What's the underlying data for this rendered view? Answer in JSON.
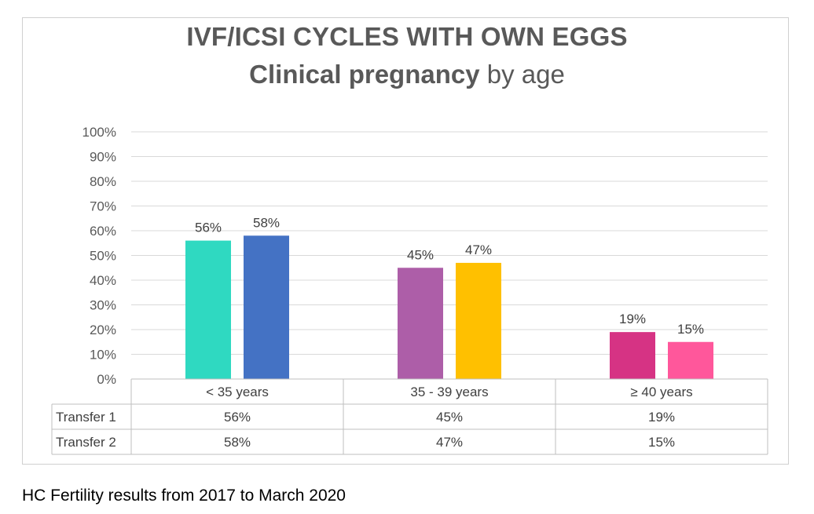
{
  "chart_data": {
    "type": "bar",
    "title": "IVF/ICSI CYCLES WITH OWN EGGS",
    "subtitle_bold": "Clinical pregnancy",
    "subtitle_rest": " by age",
    "categories": [
      "< 35 years",
      "35 - 39 years",
      "≥ 40 years"
    ],
    "series": [
      {
        "name": "Transfer 1",
        "values": [
          56,
          45,
          19
        ],
        "labels": [
          "56%",
          "45%",
          "19%"
        ]
      },
      {
        "name": "Transfer 2",
        "values": [
          58,
          47,
          15
        ],
        "labels": [
          "58%",
          "47%",
          "15%"
        ]
      }
    ],
    "bar_colors": [
      [
        "#2fd9c1",
        "#4472c4"
      ],
      [
        "#ad5ea8",
        "#ffc000"
      ],
      [
        "#d63384",
        "#ff579b"
      ]
    ],
    "ylim": [
      0,
      100
    ],
    "yticks": [
      "0%",
      "10%",
      "20%",
      "30%",
      "40%",
      "50%",
      "60%",
      "70%",
      "80%",
      "90%",
      "100%"
    ],
    "grid": true,
    "data_table": true
  },
  "footnote": "HC Fertility results from 2017 to March 2020"
}
